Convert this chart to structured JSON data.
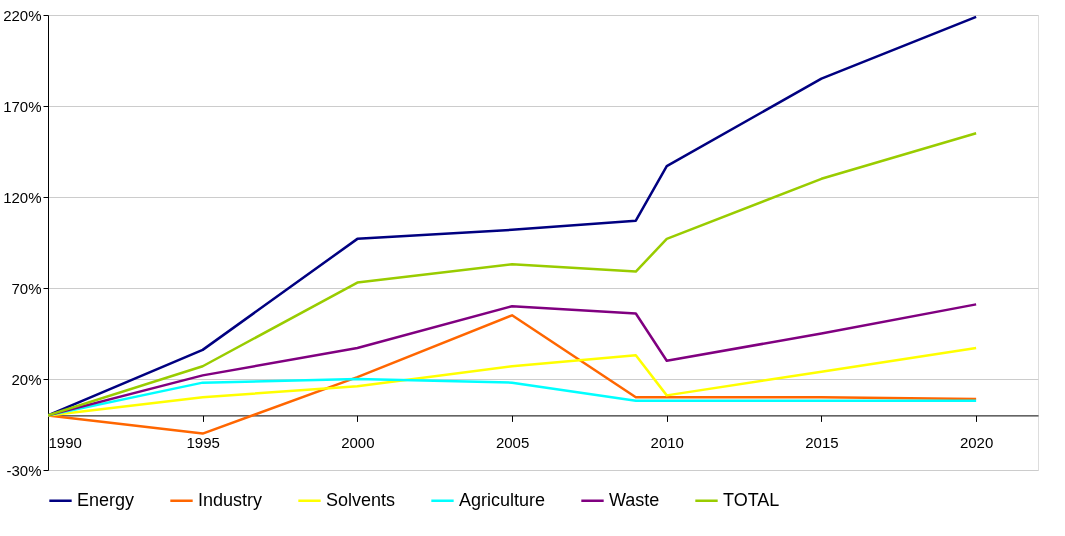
{
  "chart_data": {
    "type": "line",
    "x": [
      1990,
      1995,
      2000,
      2005,
      2009,
      2010,
      2015,
      2020
    ],
    "series": [
      {
        "name": "Energy",
        "color": "#000080",
        "values": [
          0,
          36,
          97,
          102,
          107,
          137,
          185,
          219
        ]
      },
      {
        "name": "Industry",
        "color": "#ff6600",
        "values": [
          0,
          -10,
          21,
          55,
          10,
          10,
          10,
          9
        ]
      },
      {
        "name": "Solvents",
        "color": "#ffff00",
        "values": [
          0,
          10,
          16,
          27,
          33,
          11,
          24,
          37
        ]
      },
      {
        "name": "Agriculture",
        "color": "#00ffff",
        "values": [
          0,
          18,
          20,
          18,
          8,
          8,
          8,
          8
        ]
      },
      {
        "name": "Waste",
        "color": "#800080",
        "values": [
          0,
          22,
          37,
          60,
          56,
          30,
          45,
          61
        ]
      },
      {
        "name": "TOTAL",
        "color": "#99cc00",
        "values": [
          0,
          27,
          73,
          83,
          79,
          97,
          130,
          155
        ]
      }
    ],
    "xlim": [
      1990,
      2022
    ],
    "xticks": [
      1990,
      1995,
      2000,
      2005,
      2010,
      2015,
      2020
    ],
    "ylim": [
      -30,
      220
    ],
    "yticks": [
      {
        "value": -30,
        "label": "-30%"
      },
      {
        "value": 20,
        "label": "20%"
      },
      {
        "value": 70,
        "label": "70%"
      },
      {
        "value": 120,
        "label": "120%"
      },
      {
        "value": 170,
        "label": "170%"
      },
      {
        "value": 220,
        "label": "220%"
      }
    ],
    "grid": "y",
    "legend": "bottom",
    "marker": "none",
    "line_style": "solid"
  }
}
